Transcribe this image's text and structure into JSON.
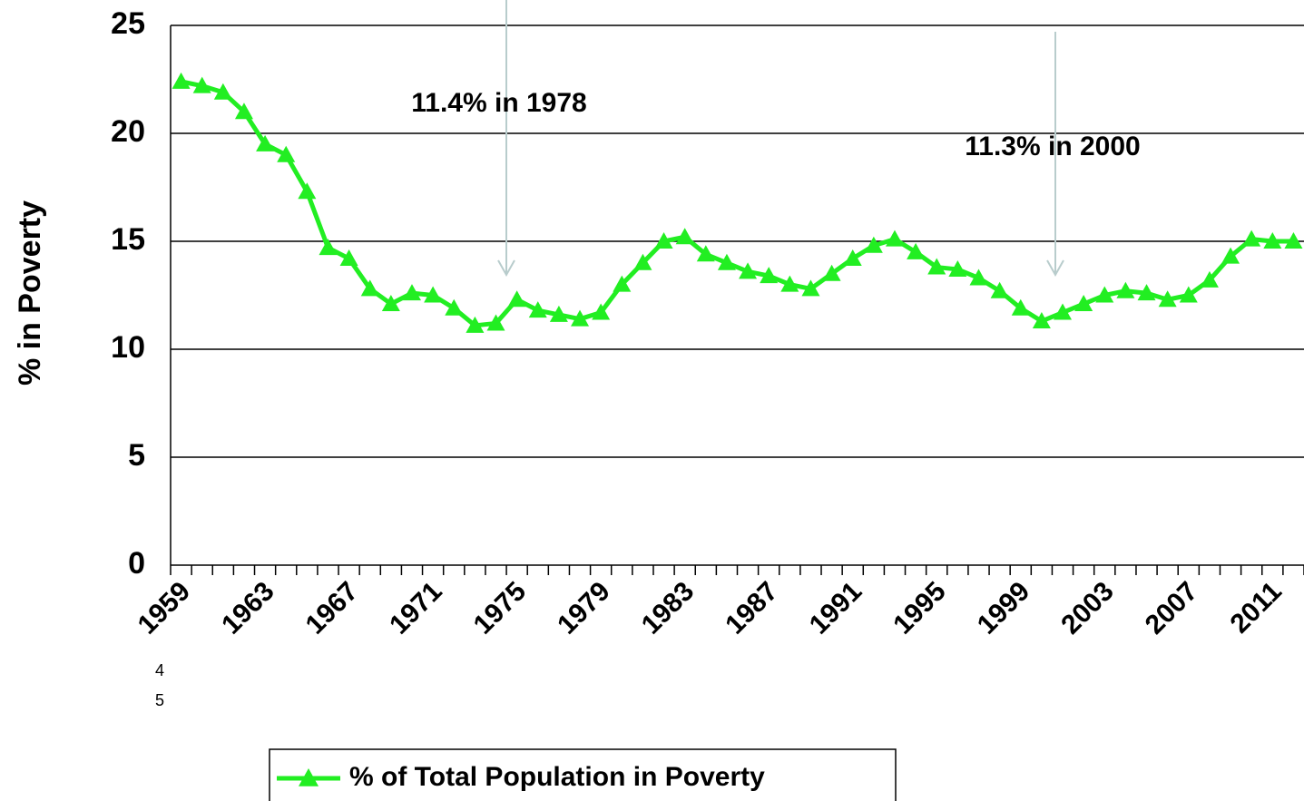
{
  "chart_data": {
    "type": "line",
    "y_label": "% in Poverty",
    "categories": [
      "1959",
      null,
      null,
      null,
      "1963",
      null,
      null,
      null,
      "1967",
      null,
      null,
      null,
      "1971",
      null,
      null,
      null,
      "1975",
      null,
      null,
      null,
      "1979",
      null,
      null,
      null,
      "1983",
      null,
      null,
      null,
      "1987",
      null,
      null,
      null,
      "1991",
      null,
      null,
      null,
      "1995",
      null,
      null,
      null,
      "1999",
      null,
      null,
      null,
      "2003",
      null,
      null,
      null,
      "2007",
      null,
      null,
      null,
      "2011",
      null
    ],
    "series": [
      {
        "name": "% of Total Population in Poverty",
        "color": "#22ee22",
        "values": [
          22.4,
          22.2,
          21.9,
          21.0,
          19.5,
          19.0,
          17.3,
          14.7,
          14.2,
          12.8,
          12.1,
          12.6,
          12.5,
          11.9,
          11.1,
          11.2,
          12.3,
          11.8,
          11.6,
          11.4,
          11.7,
          13.0,
          14.0,
          15.0,
          15.2,
          14.4,
          14.0,
          13.6,
          13.4,
          13.0,
          12.8,
          13.5,
          14.2,
          14.8,
          15.1,
          14.5,
          13.8,
          13.7,
          13.3,
          12.7,
          11.9,
          11.3,
          11.7,
          12.1,
          12.5,
          12.7,
          12.6,
          12.3,
          12.5,
          13.2,
          14.3,
          15.1,
          15.0,
          15.0
        ]
      }
    ],
    "ylim": [
      0,
      25
    ],
    "yticks": [
      0,
      5,
      10,
      15,
      20,
      25
    ],
    "grid": true,
    "annotations": [
      "11.4% in 1978",
      "11.3% in 2000"
    ],
    "slide_number_lines": [
      "4",
      "5"
    ]
  }
}
